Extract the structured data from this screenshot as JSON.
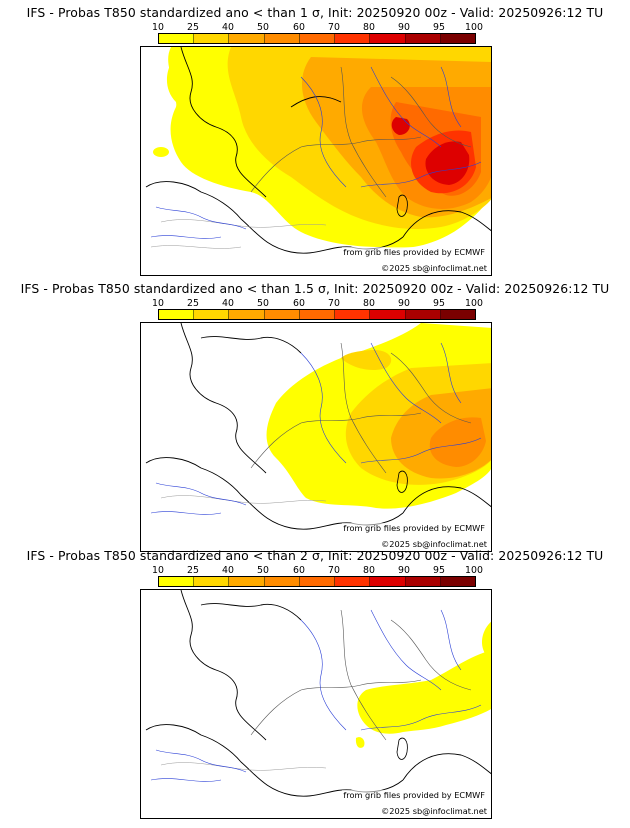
{
  "colorbar": {
    "ticks": [
      "10",
      "25",
      "40",
      "50",
      "60",
      "70",
      "80",
      "90",
      "95",
      "100"
    ],
    "colors": [
      "#ffff00",
      "#ffd700",
      "#ffaa00",
      "#ff8c00",
      "#ff6a00",
      "#ff3300",
      "#dd0000",
      "#aa0000",
      "#7a0000"
    ]
  },
  "panels": [
    {
      "title": "IFS - Probas T850  standardized ano < than 1 σ, Init: 20250920 00z - Valid: 20250926:12 TU",
      "credit": "from grib files provided by ECMWF",
      "copyright": "©2025 sb@infoclimat.net"
    },
    {
      "title": "IFS - Probas T850  standardized ano < than 1.5 σ, Init: 20250920 00z - Valid: 20250926:12 TU",
      "credit": "from grib files provided by ECMWF",
      "copyright": "©2025 sb@infoclimat.net"
    },
    {
      "title": "IFS - Probas T850  standardized ano < than 2 σ, Init: 20250920 00z - Valid: 20250926:12 TU",
      "credit": "from grib files provided by ECMWF",
      "copyright": "©2025 sb@infoclimat.net"
    }
  ]
}
